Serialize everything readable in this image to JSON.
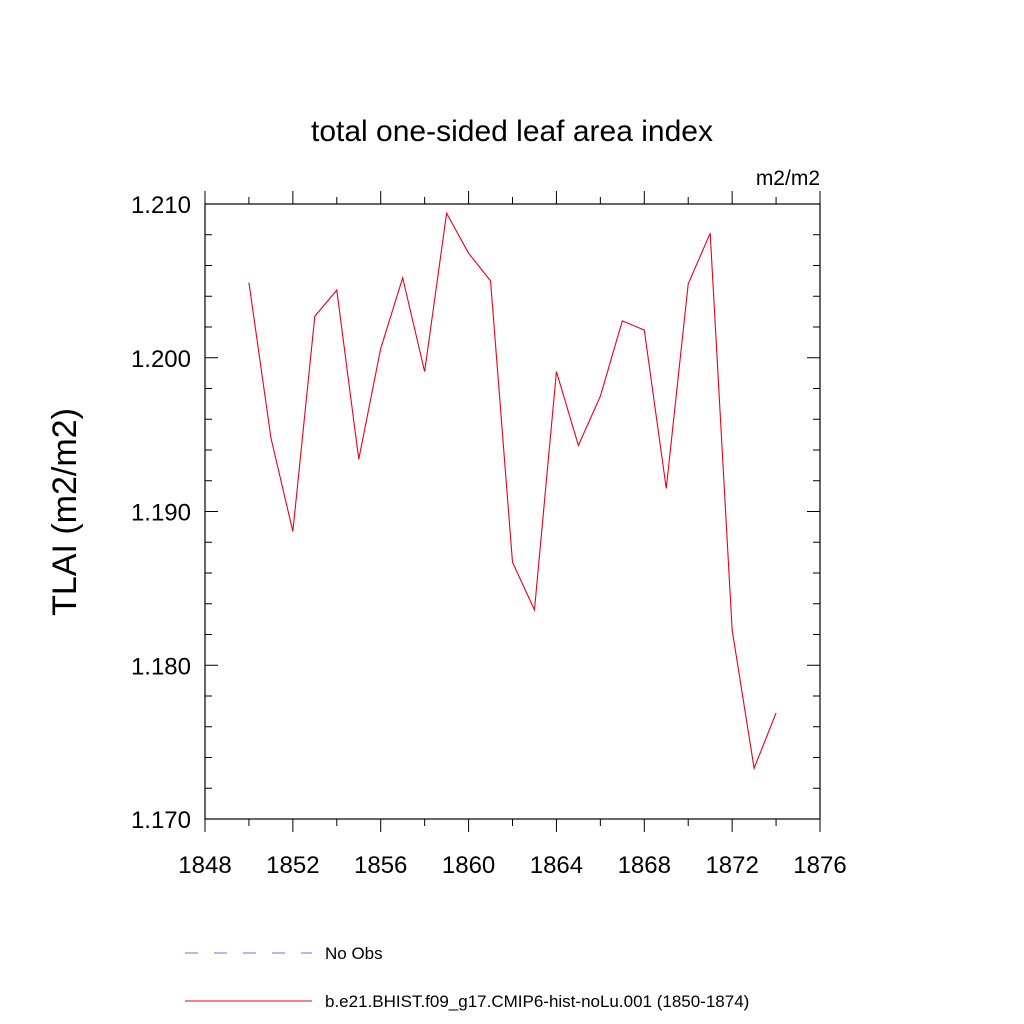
{
  "chart_data": {
    "type": "line",
    "title": "total one-sided leaf area index",
    "units_label": "m2/m2",
    "ylabel": "TLAI  (m2/m2)",
    "xlabel": "",
    "xlim": [
      1848,
      1876
    ],
    "ylim": [
      1.17,
      1.21
    ],
    "x_ticks": [
      "1848",
      "1852",
      "1856",
      "1860",
      "1864",
      "1868",
      "1872",
      "1876"
    ],
    "y_ticks": [
      "1.170",
      "1.180",
      "1.190",
      "1.200",
      "1.210"
    ],
    "grid": false,
    "legend_placement": "bottom",
    "series": [
      {
        "name": "b.e21.BHIST.f09_g17.CMIP6-hist-noLu.001 (1850-1874)",
        "color": "#e8001c",
        "style": "solid",
        "x": [
          1850,
          1851,
          1852,
          1853,
          1854,
          1855,
          1856,
          1857,
          1858,
          1859,
          1860,
          1861,
          1862,
          1863,
          1864,
          1865,
          1866,
          1867,
          1868,
          1869,
          1870,
          1871,
          1872,
          1873,
          1874
        ],
        "values": [
          1.2049,
          1.1948,
          1.1887,
          1.2027,
          1.2044,
          1.1934,
          1.2006,
          1.2052,
          1.1991,
          1.2094,
          1.2068,
          1.205,
          1.1867,
          1.1836,
          1.1991,
          1.1943,
          1.1975,
          1.2024,
          1.2018,
          1.1915,
          1.2048,
          1.2081,
          1.1823,
          1.1733,
          1.1769
        ]
      }
    ],
    "legend": [
      {
        "label": "No Obs",
        "color": "#7a6fd6",
        "style": "dashed"
      },
      {
        "label": "b.e21.BHIST.f09_g17.CMIP6-hist-noLu.001 (1850-1874)",
        "color": "#e8001c",
        "style": "solid"
      }
    ]
  }
}
